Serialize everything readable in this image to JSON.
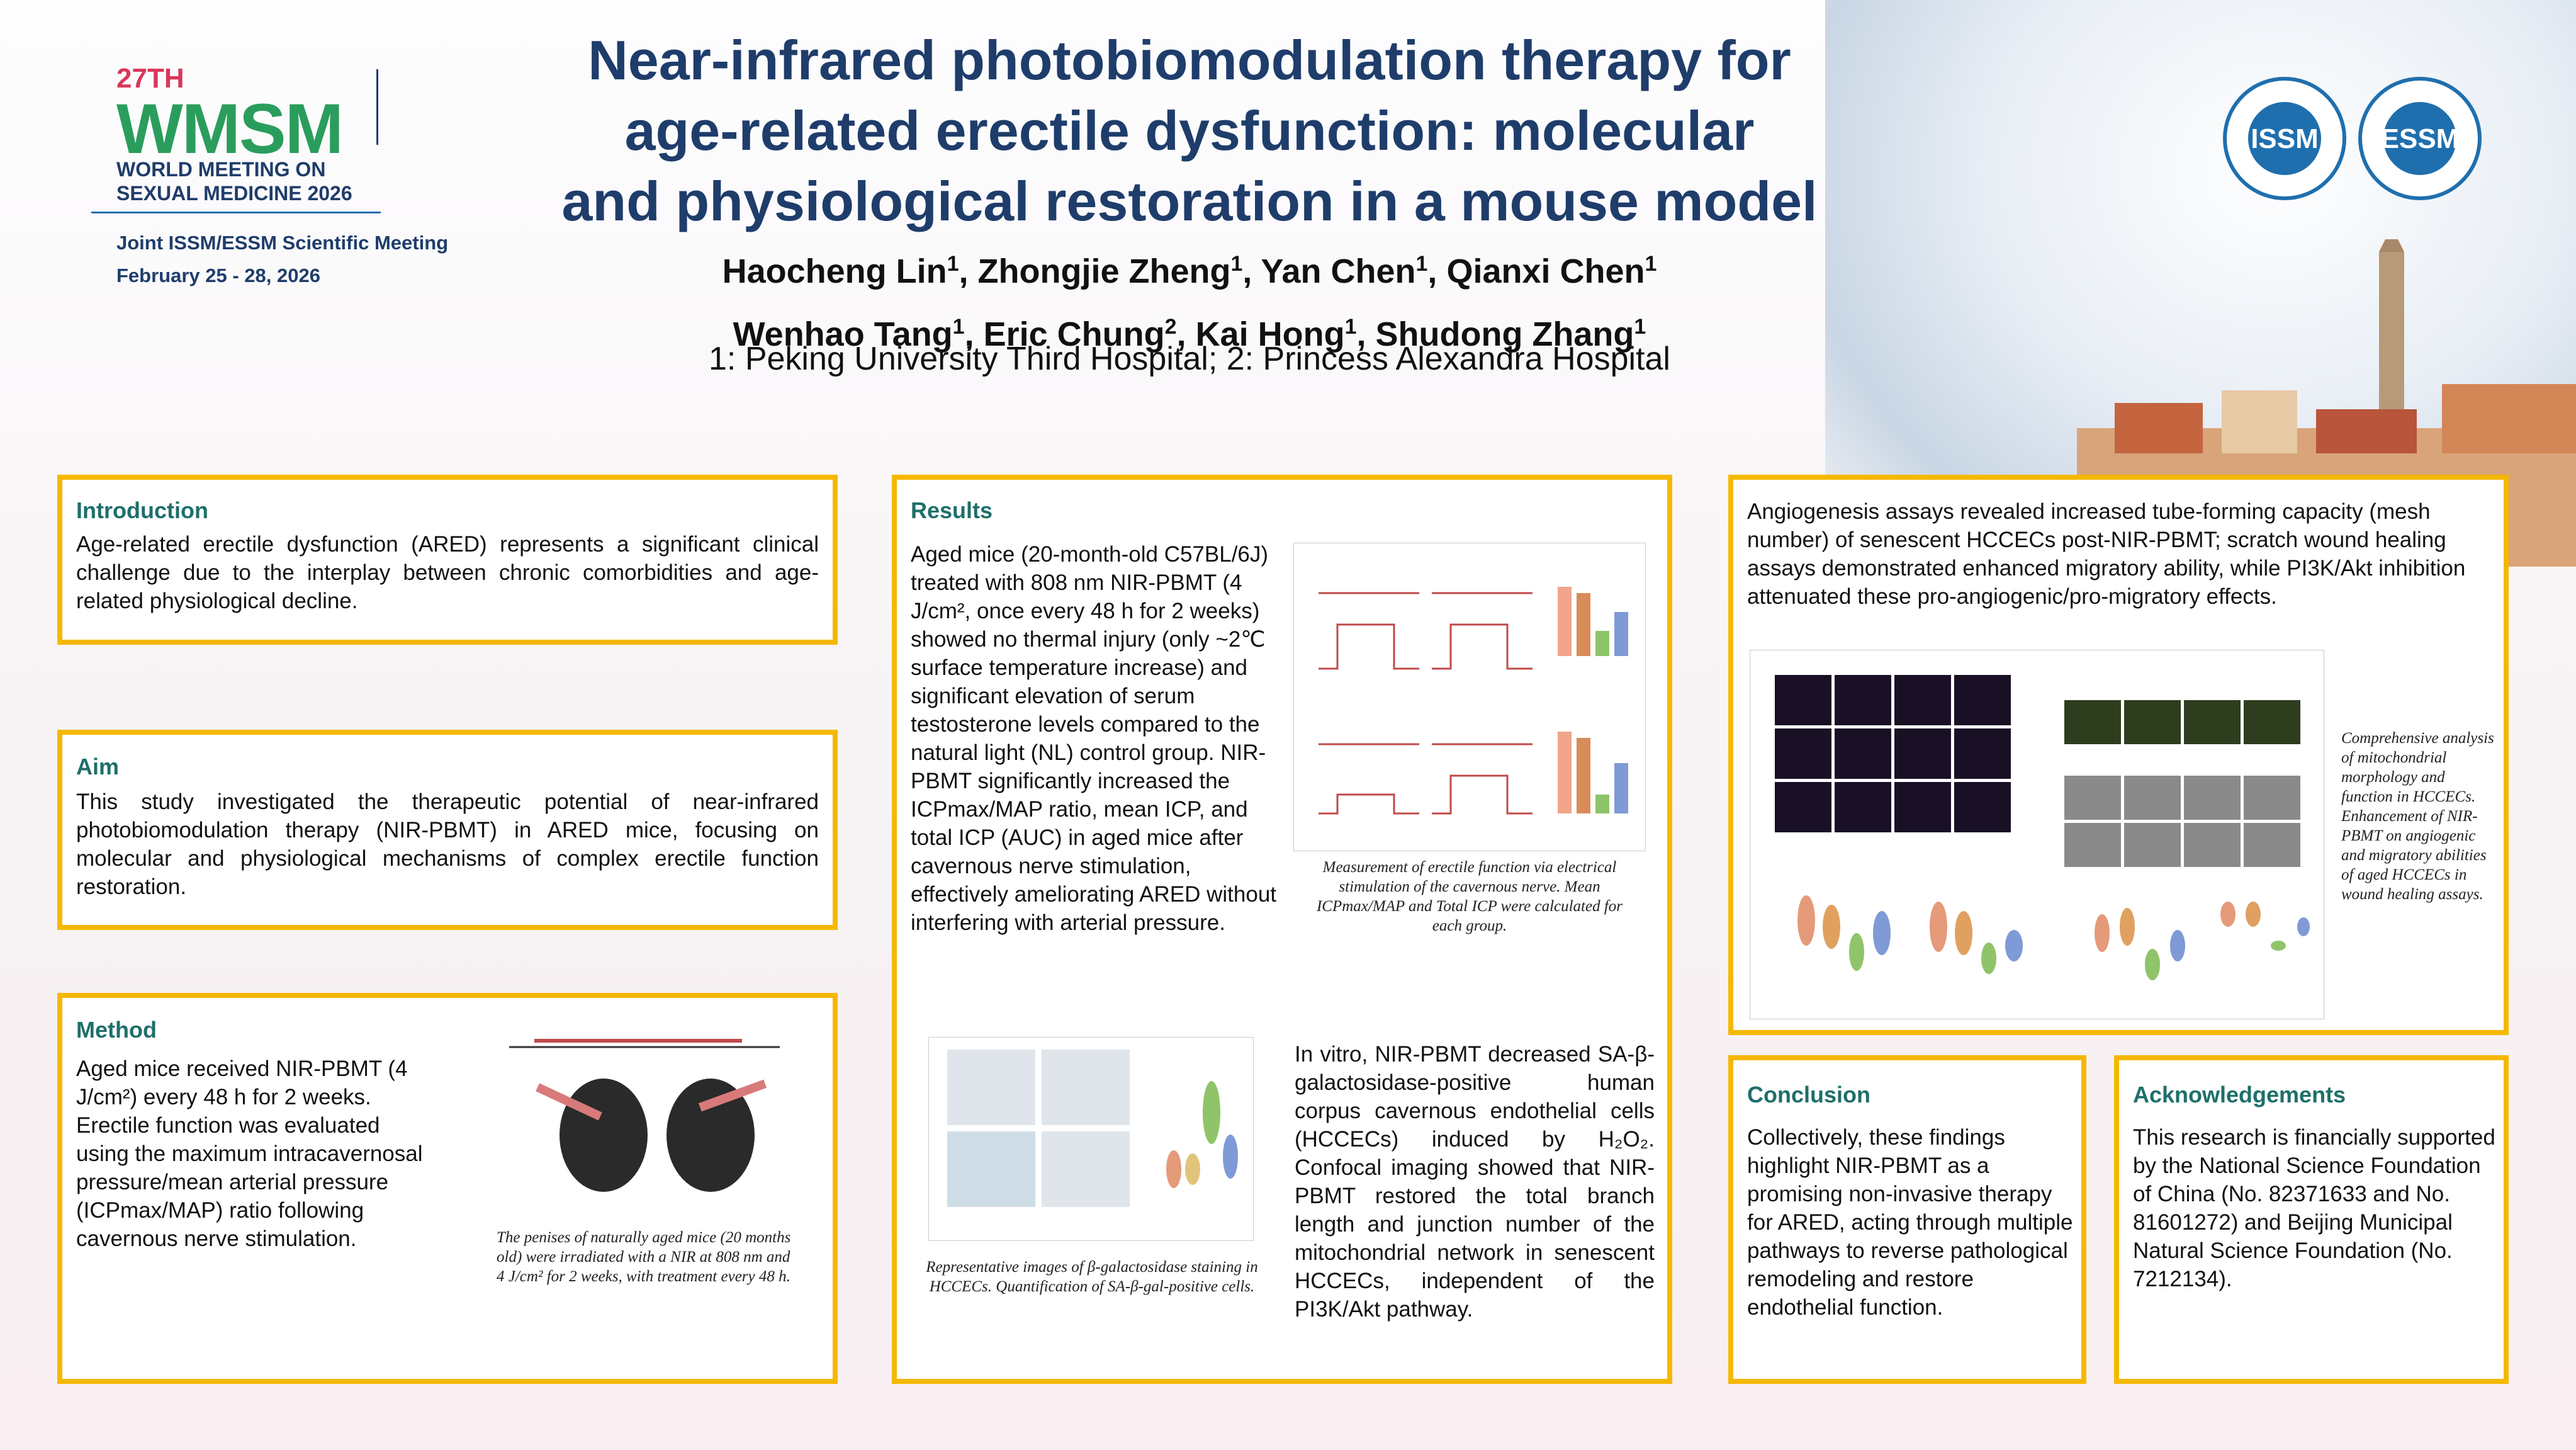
{
  "header": {
    "edition": "27TH",
    "acronym": "WMSM",
    "meeting_line1": "WORLD MEETING ON",
    "meeting_line2": "SEXUAL MEDICINE 2026",
    "joint": "Joint ISSM/ESSM Scientific Meeting",
    "dates": "February 25 - 28, 2026",
    "title_lines": [
      "Near-infrared photobiomodulation therapy for",
      "age-related erectile dysfunction: molecular",
      "and physiological restoration in a mouse model"
    ],
    "authors": [
      {
        "name": "Haocheng Lin",
        "aff": "1"
      },
      {
        "name": "Zhongjie Zheng",
        "aff": "1"
      },
      {
        "name": "Yan Chen",
        "aff": "1"
      },
      {
        "name": "Qianxi Chen",
        "aff": "1"
      },
      {
        "name": "Wenhao Tang",
        "aff": "1"
      },
      {
        "name": "Eric Chung",
        "aff": "2"
      },
      {
        "name": "Kai Hong",
        "aff": "1"
      },
      {
        "name": "Shudong Zhang",
        "aff": "1"
      }
    ],
    "affiliations": "1: Peking University Third Hospital; 2: Princess Alexandra Hospital",
    "logo1": "ISSM",
    "logo2": "ESSM"
  },
  "introduction": {
    "title": "Introduction",
    "text": "Age-related erectile dysfunction (ARED) represents a significant clinical challenge due to the interplay between chronic comorbidities and age-related physiological decline."
  },
  "aim": {
    "title": "Aim",
    "text": "This study investigated the therapeutic potential of near-infrared photobiomodulation therapy (NIR-PBMT) in ARED mice, focusing on molecular and physiological mechanisms of complex erectile function restoration."
  },
  "method": {
    "title": "Method",
    "text": "Aged mice received NIR-PBMT (4 J/cm²) every 48 h for 2 weeks. Erectile function was evaluated using the maximum intracavernosal pressure/mean arterial pressure (ICPmax/MAP) ratio following cavernous nerve stimulation.",
    "caption": "The penises of naturally aged mice (20 months old) were irradiated with a NIR at 808 nm and 4 J/cm² for 2 weeks, with treatment every 48 h."
  },
  "results": {
    "title": "Results",
    "text1": "Aged mice (20-month-old C57BL/6J) treated with 808 nm NIR-PBMT (4 J/cm², once every 48 h for 2 weeks) showed no thermal injury (only ~2℃ surface temperature increase) and significant elevation of serum testosterone levels compared to the natural light (NL) control group. NIR-PBMT significantly increased the ICPmax/MAP ratio, mean ICP, and total ICP (AUC) in aged mice after cavernous nerve stimulation, effectively ameliorating ARED without interfering with arterial pressure.",
    "caption1": "Measurement of erectile function via electrical stimulation of the cavernous nerve. Mean ICPmax/MAP and Total ICP were calculated for each group.",
    "text2": "In vitro, NIR-PBMT decreased SA-β-galactosidase-positive human corpus cavernous endothelial cells (HCCECs) induced by H₂O₂. Confocal imaging showed that NIR-PBMT restored the total branch length and junction number of the mitochondrial network in senescent HCCECs, independent of the PI3K/Akt pathway.",
    "caption2": "Representative images of β-galactosidase staining in HCCECs. Quantification of SA-β-gal-positive cells."
  },
  "angiogenesis": {
    "text": "Angiogenesis assays revealed increased tube-forming capacity (mesh number) of senescent HCCECs post-NIR-PBMT; scratch wound healing assays demonstrated enhanced migratory ability, while PI3K/Akt inhibition attenuated these pro-angiogenic/pro-migratory effects.",
    "caption": "Comprehensive analysis of mitochondrial morphology and function in HCCECs. Enhancement of NIR-PBMT on angiogenic and migratory abilities of aged HCCECs in wound healing assays."
  },
  "conclusion": {
    "title": "Conclusion",
    "text": "Collectively, these findings highlight NIR-PBMT as a promising non-invasive therapy for ARED, acting through multiple pathways to reverse pathological remodeling and restore endothelial function."
  },
  "acknowledgements": {
    "title": "Acknowledgements",
    "text": "This research is financially supported by the National Science Foundation of China (No. 82371633 and No. 81601272) and Beijing Municipal Natural Science Foundation (No. 7212134)."
  }
}
